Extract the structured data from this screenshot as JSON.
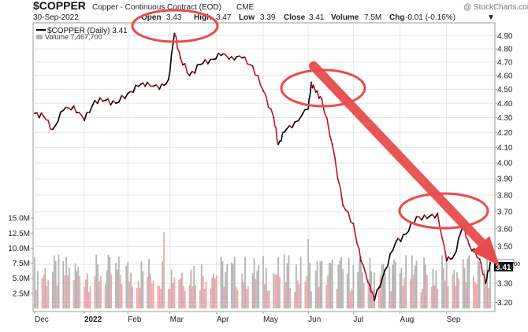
{
  "header": {
    "symbol": "$COPPER",
    "description": "Copper - Continuous Contract (EOD)",
    "exchange": "CME",
    "watermark": "@ StockCharts.com",
    "date": "30-Sep-2022",
    "open_label": "Open",
    "open_value": "3.43",
    "high_label": "High",
    "high_value": "3.47",
    "low_label": "Low",
    "low_value": "3.39",
    "close_label": "Close",
    "close_value": "3.41",
    "volume_label": "Volume",
    "volume_value": "7.5M",
    "chg_label": "Chg",
    "chg_value": "-0.01 (-0.16%)",
    "chg_marker": "▼"
  },
  "legend": {
    "price_series": "$COPPER (Daily) 3.41",
    "volume_series": "Volume 7,467,700"
  },
  "last_price_badge": "3.41",
  "last_volume_badge": "7.467,700",
  "colors": {
    "price_up": "#000000",
    "price_down": "#c0102a",
    "volume_up": "#b4b4b4",
    "volume_down": "#f0a8ae",
    "annotation_red": "#e74c4c",
    "grid": "#e6e6e6"
  },
  "chart_data": {
    "type": "line",
    "title": "$COPPER Copper - Continuous Contract (EOD) CME",
    "y_axis_ticks": [
      "4.90",
      "4.80",
      "4.70",
      "4.60",
      "4.50",
      "4.40",
      "4.30",
      "4.20",
      "4.10",
      "4.00",
      "3.90",
      "3.80",
      "3.70",
      "3.60",
      "3.50",
      "3.40",
      "3.30",
      "3.20"
    ],
    "ylim": [
      3.17,
      4.96
    ],
    "y_scale": "log",
    "volume_ticks": [
      "15.0M",
      "12.5M",
      "10.0M",
      "7.5M",
      "5.0M",
      "2.5M"
    ],
    "volume_ylim": [
      0,
      17.5
    ],
    "x_axis_labels": [
      "Dec",
      "2022",
      "Feb",
      "Mar",
      "Apr",
      "May",
      "Jun",
      "Jul",
      "Aug",
      "Sep"
    ],
    "grid": true,
    "legend_position": "top-left",
    "x_range": [
      "2021-12-01",
      "2022-09-30"
    ],
    "price_points": [
      [
        "2021-12-01",
        4.33
      ],
      [
        "2021-12-07",
        4.31
      ],
      [
        "2021-12-13",
        4.22
      ],
      [
        "2021-12-20",
        4.35
      ],
      [
        "2021-12-27",
        4.38
      ],
      [
        "2022-01-03",
        4.28
      ],
      [
        "2022-01-10",
        4.42
      ],
      [
        "2022-01-17",
        4.42
      ],
      [
        "2022-01-24",
        4.4
      ],
      [
        "2022-02-01",
        4.47
      ],
      [
        "2022-02-08",
        4.52
      ],
      [
        "2022-02-14",
        4.55
      ],
      [
        "2022-02-22",
        4.5
      ],
      [
        "2022-02-28",
        4.57
      ],
      [
        "2022-03-04",
        4.92
      ],
      [
        "2022-03-08",
        4.73
      ],
      [
        "2022-03-14",
        4.6
      ],
      [
        "2022-03-21",
        4.68
      ],
      [
        "2022-03-28",
        4.72
      ],
      [
        "2022-04-04",
        4.75
      ],
      [
        "2022-04-11",
        4.74
      ],
      [
        "2022-04-18",
        4.73
      ],
      [
        "2022-04-25",
        4.67
      ],
      [
        "2022-05-02",
        4.49
      ],
      [
        "2022-05-09",
        4.3
      ],
      [
        "2022-05-12",
        4.12
      ],
      [
        "2022-05-16",
        4.2
      ],
      [
        "2022-05-23",
        4.27
      ],
      [
        "2022-06-01",
        4.36
      ],
      [
        "2022-06-03",
        4.55
      ],
      [
        "2022-06-06",
        4.48
      ],
      [
        "2022-06-10",
        4.43
      ],
      [
        "2022-06-17",
        4.12
      ],
      [
        "2022-06-24",
        3.74
      ],
      [
        "2022-07-01",
        3.63
      ],
      [
        "2022-07-06",
        3.42
      ],
      [
        "2022-07-12",
        3.29
      ],
      [
        "2022-07-15",
        3.21
      ],
      [
        "2022-07-22",
        3.37
      ],
      [
        "2022-07-29",
        3.52
      ],
      [
        "2022-08-05",
        3.57
      ],
      [
        "2022-08-12",
        3.67
      ],
      [
        "2022-08-19",
        3.66
      ],
      [
        "2022-08-26",
        3.69
      ],
      [
        "2022-09-01",
        3.42
      ],
      [
        "2022-09-06",
        3.45
      ],
      [
        "2022-09-12",
        3.62
      ],
      [
        "2022-09-16",
        3.51
      ],
      [
        "2022-09-23",
        3.43
      ],
      [
        "2022-09-27",
        3.3
      ],
      [
        "2022-09-30",
        3.41
      ]
    ],
    "volume_profile": {
      "unit": "M",
      "average": 6.0,
      "peak_dates": [
        "2022-02-25",
        "2022-06-01"
      ],
      "peak_values": [
        12.7,
        11.5
      ]
    },
    "annotations": [
      {
        "type": "ellipse",
        "near": "2022-03-08",
        "label": ""
      },
      {
        "type": "ellipse",
        "near": "2022-06-03",
        "label": ""
      },
      {
        "type": "ellipse",
        "near": "2022-08-20",
        "label": ""
      },
      {
        "type": "arrow",
        "from": "2022-06-01",
        "to": "2022-09-30",
        "label": ""
      }
    ]
  }
}
